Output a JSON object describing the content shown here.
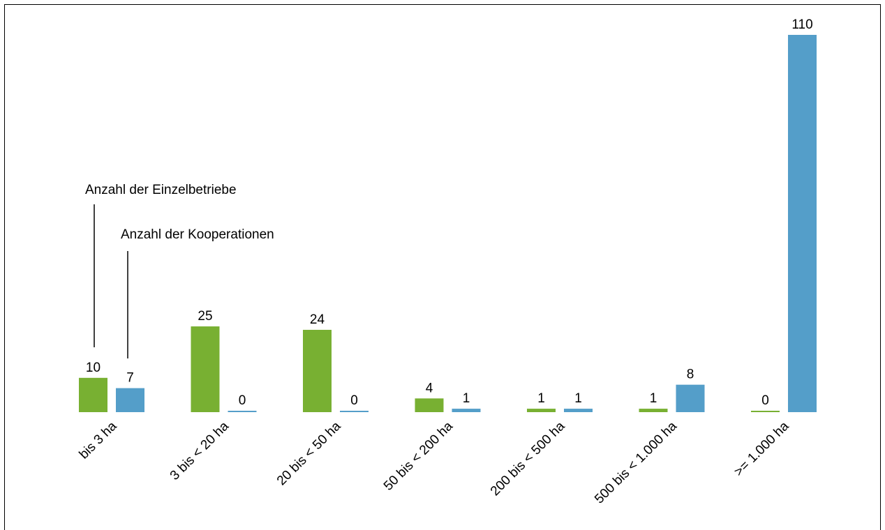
{
  "chart_data": {
    "type": "bar",
    "categories": [
      "bis 3 ha",
      "3 bis < 20 ha",
      "20 bis < 50 ha",
      "50 bis < 200 ha",
      "200 bis < 500 ha",
      "500 bis < 1.000 ha",
      ">= 1.000 ha"
    ],
    "series": [
      {
        "name": "Anzahl der Einzelbetriebe",
        "color": "#78b032",
        "values": [
          10,
          25,
          24,
          4,
          1,
          1,
          0
        ]
      },
      {
        "name": "Anzahl der Kooperationen",
        "color": "#549ec9",
        "values": [
          7,
          0,
          0,
          1,
          1,
          8,
          110
        ]
      }
    ]
  }
}
